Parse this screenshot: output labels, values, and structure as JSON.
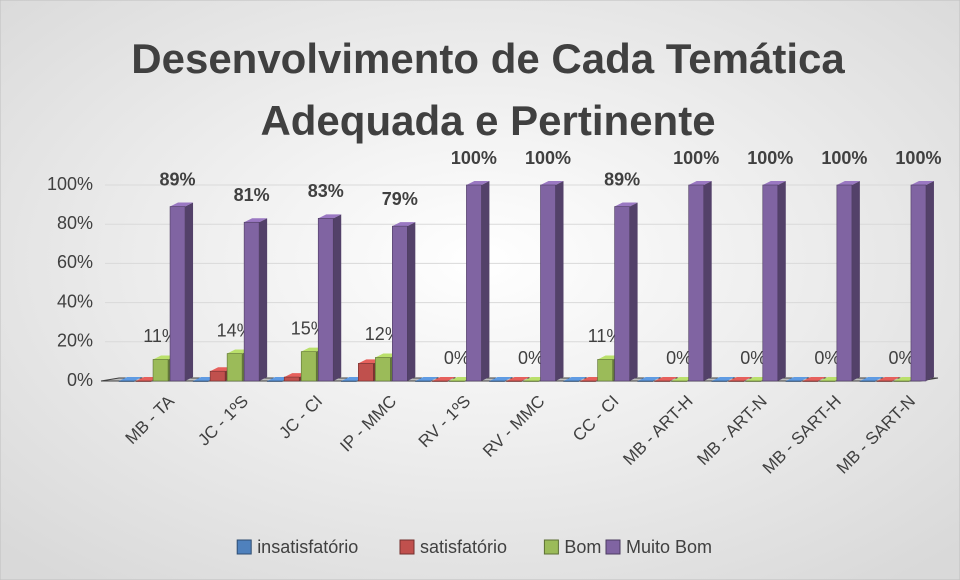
{
  "chart_data": {
    "type": "bar3d",
    "title": [
      "Desenvolvimento de Cada Temática",
      "Adequada e Pertinente"
    ],
    "categories": [
      "MB - TA",
      "JC - 1ºS",
      "JC - CI",
      "IP - MMC",
      "RV - 1ºS",
      "RV - MMC",
      "CC - CI",
      "MB - ART-H",
      "MB - ART-N",
      "MB - SART-H",
      "MB - SART-N"
    ],
    "series": [
      {
        "name": "insatisfatório",
        "color": "#4f81bd",
        "values": [
          0,
          0,
          0,
          0,
          0,
          0,
          0,
          0,
          0,
          0,
          0
        ]
      },
      {
        "name": "satisfatório",
        "color": "#c0504d",
        "values": [
          0,
          5,
          2,
          9,
          0,
          0,
          0,
          0,
          0,
          0,
          0
        ]
      },
      {
        "name": "Bom",
        "color": "#9bbb59",
        "values": [
          11,
          14,
          15,
          12,
          0,
          0,
          11,
          0,
          0,
          0,
          0
        ],
        "value_labels": [
          "11%",
          "14%",
          "15%",
          "12%",
          "0%",
          "0%",
          "11%",
          "0%",
          "0%",
          "0%",
          "0%"
        ]
      },
      {
        "name": "Muito Bom",
        "color": "#8064a2",
        "values": [
          89,
          81,
          83,
          79,
          100,
          100,
          89,
          100,
          100,
          100,
          100
        ],
        "value_labels": [
          "89%",
          "81%",
          "83%",
          "79%",
          "100%",
          "100%",
          "89%",
          "100%",
          "100%",
          "100%",
          "100%"
        ]
      }
    ],
    "ylim": [
      0,
      100
    ],
    "yticks": [
      {
        "value": 0,
        "label": "0%"
      },
      {
        "value": 20,
        "label": "20%"
      },
      {
        "value": 40,
        "label": "40%"
      },
      {
        "value": 60,
        "label": "60%"
      },
      {
        "value": 80,
        "label": "80%"
      },
      {
        "value": 100,
        "label": "100%"
      }
    ],
    "grid": true,
    "legend": "bottom"
  }
}
